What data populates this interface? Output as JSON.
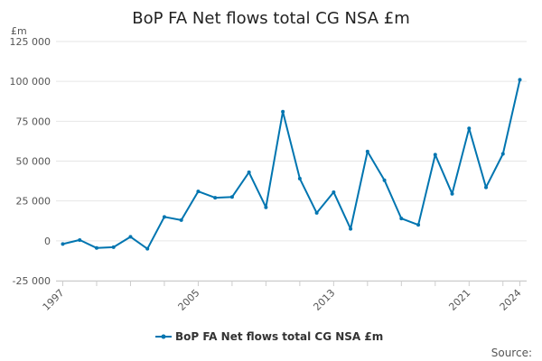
{
  "chart_data": {
    "type": "line",
    "title": "BoP FA Net flows total CG NSA £m",
    "unit_label": "£m",
    "source_label": "Source:",
    "series_color": "#0075b0",
    "ylim": [
      -25000,
      125000
    ],
    "y_ticks": [
      {
        "value": 125000,
        "label": "125 000"
      },
      {
        "value": 100000,
        "label": "100 000"
      },
      {
        "value": 75000,
        "label": "75 000"
      },
      {
        "value": 50000,
        "label": "50 000"
      },
      {
        "value": 25000,
        "label": "25 000"
      },
      {
        "value": 0,
        "label": "0"
      },
      {
        "value": -25000,
        "label": "-25 000"
      }
    ],
    "x_tick_labels": [
      "1997",
      "2005",
      "2013",
      "2021",
      "2024"
    ],
    "x_minor_ticks": [
      1997,
      1999,
      2001,
      2003,
      2005,
      2007,
      2009,
      2011,
      2013,
      2015,
      2017,
      2019,
      2021,
      2023,
      2024
    ],
    "grid": true,
    "legend_position": "bottom",
    "series": [
      {
        "name": "BoP FA Net flows total CG NSA £m",
        "x": [
          1997,
          1998,
          1999,
          2000,
          2001,
          2002,
          2003,
          2004,
          2005,
          2006,
          2007,
          2008,
          2009,
          2010,
          2011,
          2012,
          2013,
          2014,
          2015,
          2016,
          2017,
          2018,
          2019,
          2020,
          2021,
          2022,
          2023,
          2024
        ],
        "values": [
          -2000,
          500,
          -4500,
          -4000,
          2500,
          -5000,
          15000,
          13000,
          31000,
          27000,
          27500,
          43000,
          21000,
          81000,
          39000,
          17500,
          30500,
          7500,
          56000,
          38000,
          14000,
          10000,
          54000,
          29500,
          70500,
          33500,
          54500,
          101000
        ]
      }
    ]
  }
}
